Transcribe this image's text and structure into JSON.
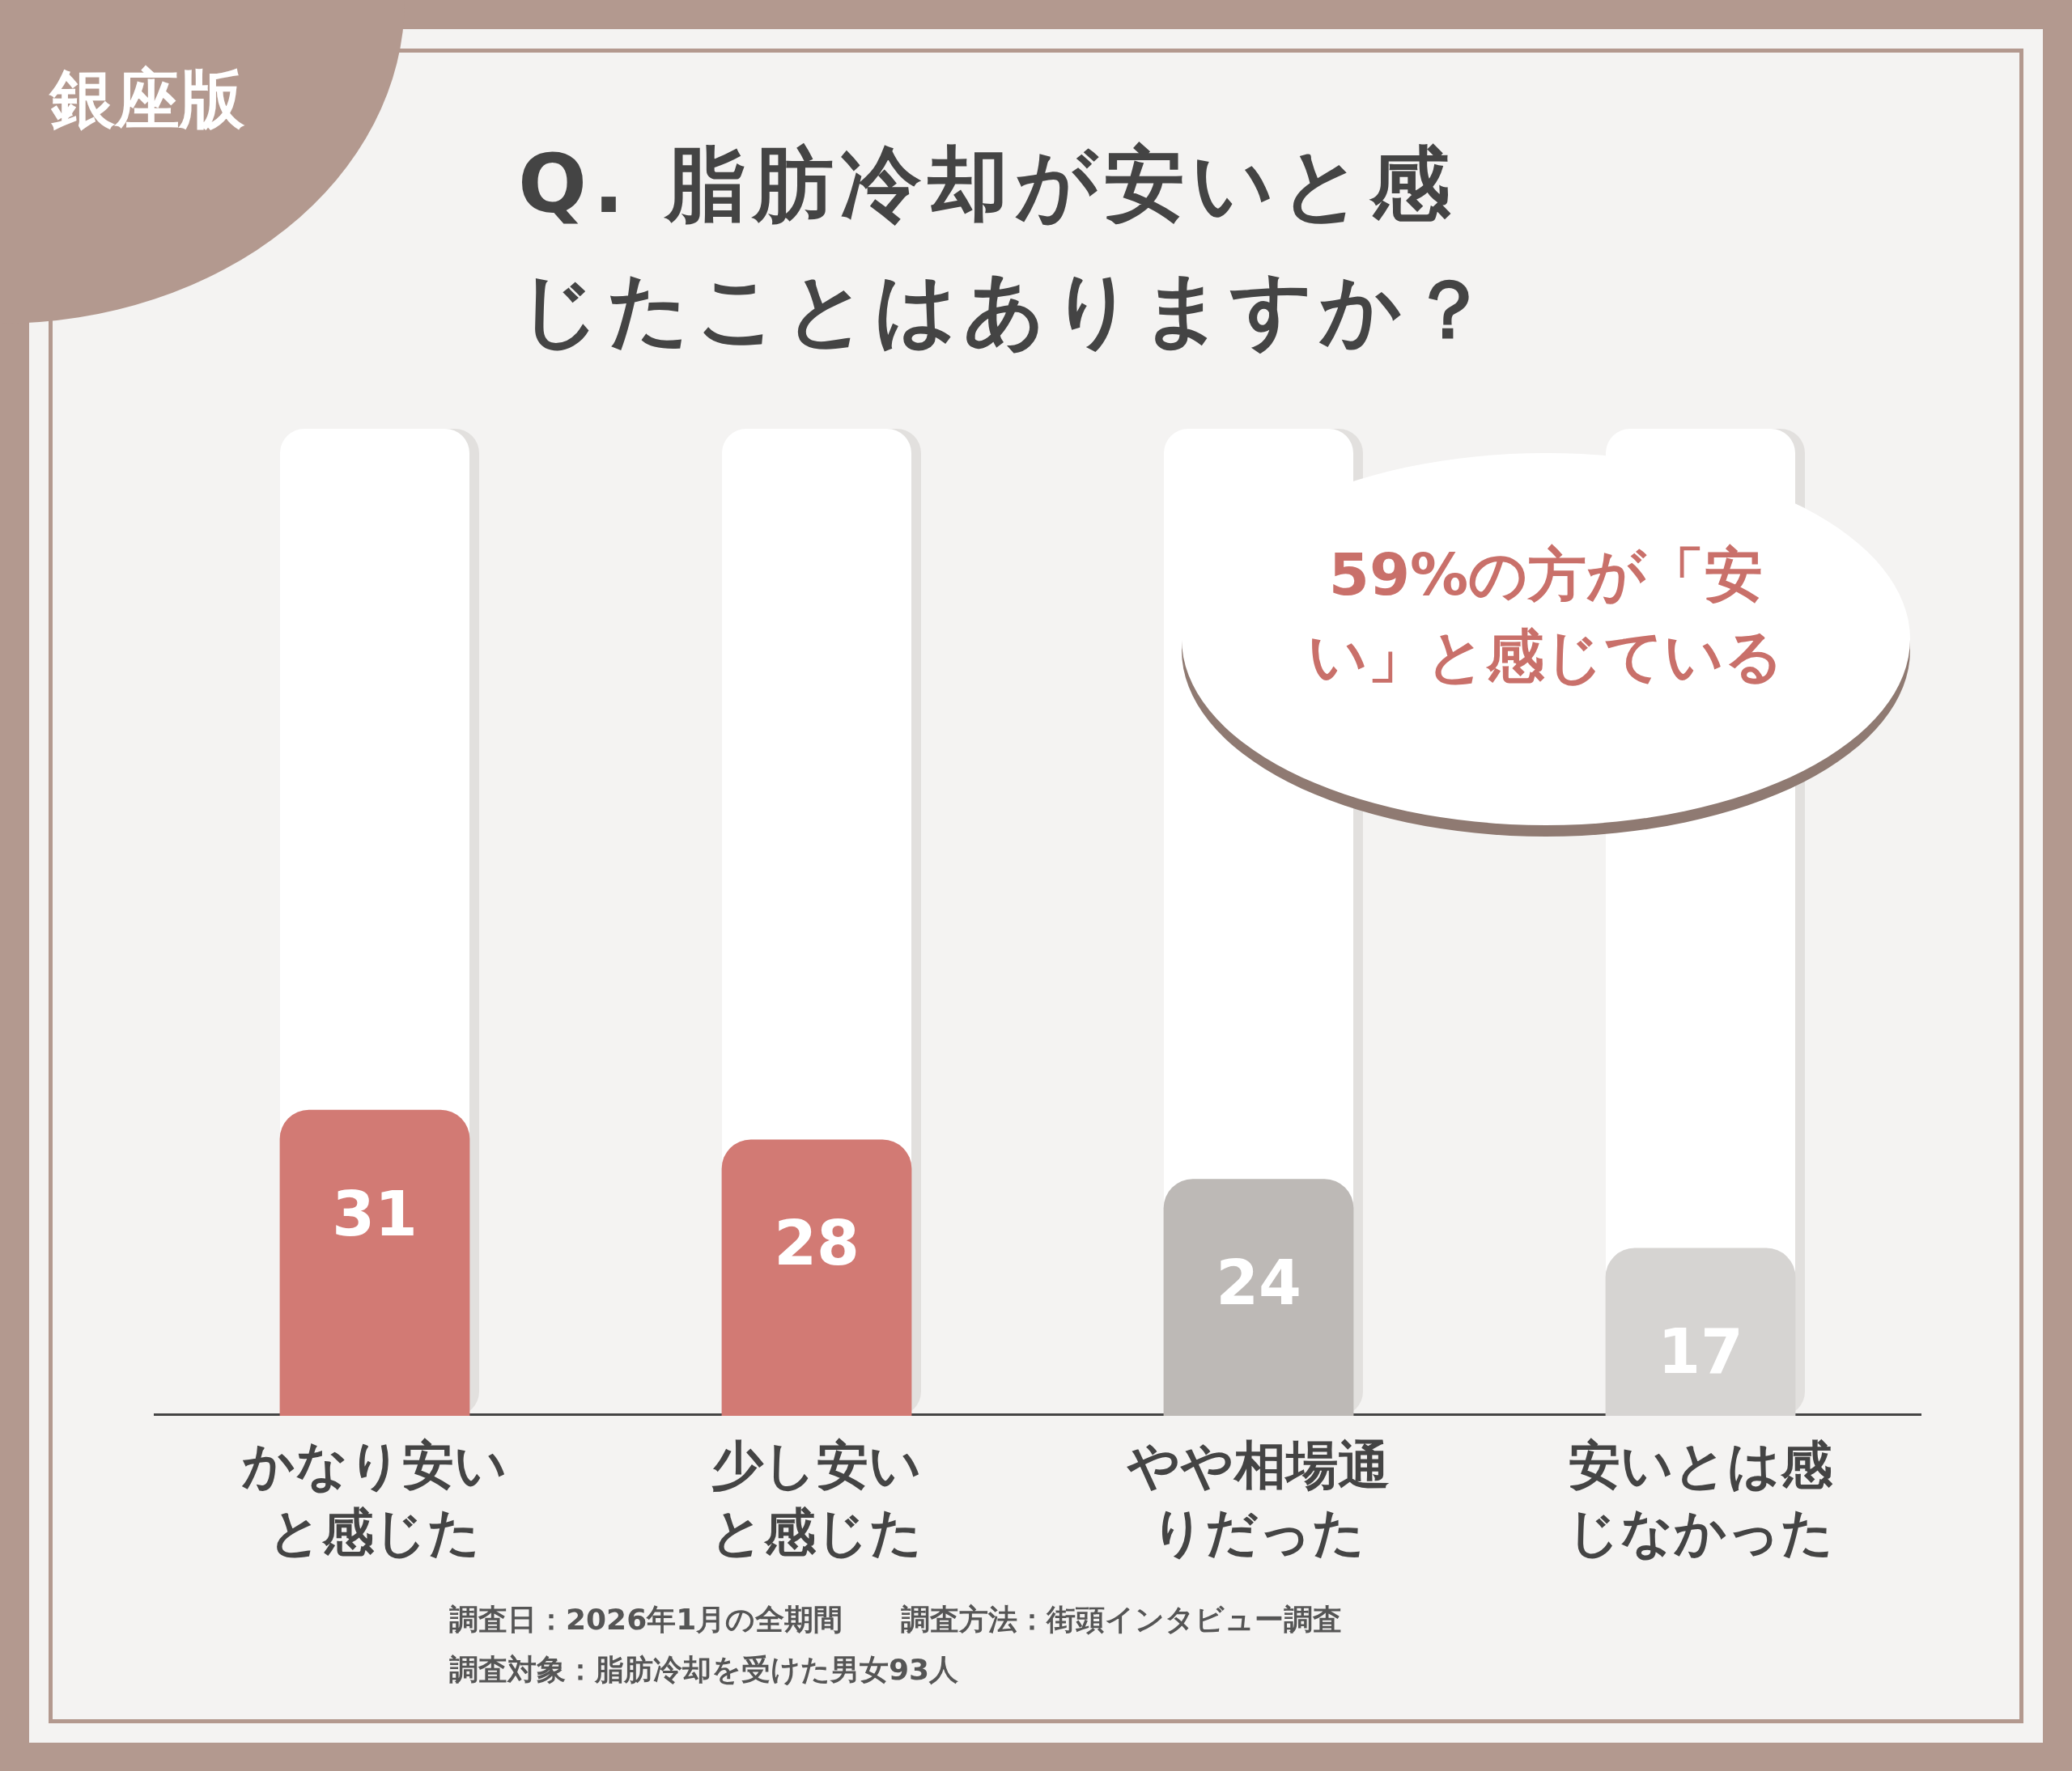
{
  "chart_data": {
    "type": "bar",
    "title": "Q. 脂肪冷却が安いと感じたことはありますか？",
    "categories": [
      "かなり安いと感じた",
      "少し安いと感じた",
      "やや相場通りだった",
      "安いとは感じなかった"
    ],
    "values": [
      31,
      28,
      24,
      17
    ],
    "colors": [
      "#d27a74",
      "#d27a74",
      "#bdb9b6",
      "#d6d4d2"
    ],
    "ylim": [
      0,
      100
    ],
    "data_labels": true,
    "annotations": [
      "銀座版",
      "59%の方が「安い」と感じている",
      "調査日：2026年1月の全期間　　調査方法：街頭インタビュー調査",
      "調査対象：脂肪冷却を受けた男女93人"
    ]
  }
}
